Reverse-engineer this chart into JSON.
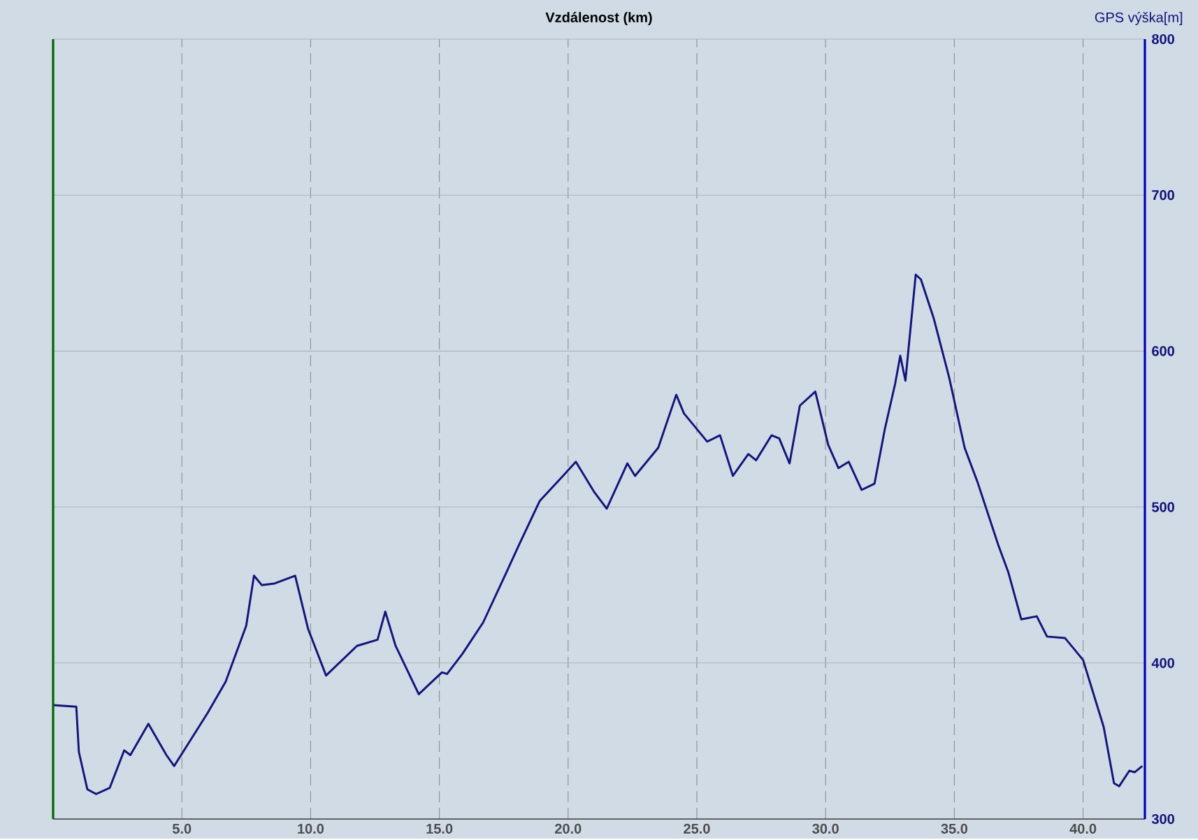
{
  "chart_data": {
    "type": "line",
    "xlabel": "Vzdálenost (km)",
    "ylabel": "GPS výška[m]",
    "x": [
      0,
      0.9,
      1.0,
      1.33,
      1.67,
      2.2,
      2.76,
      3.0,
      3.7,
      4.4,
      4.7,
      6.0,
      6.7,
      7.5,
      7.8,
      8.1,
      8.6,
      9.4,
      9.9,
      10.6,
      11.8,
      12.6,
      12.9,
      13.3,
      14.2,
      15.1,
      15.3,
      15.9,
      16.7,
      17.6,
      18.1,
      18.9,
      19.8,
      20.3,
      21.0,
      21.5,
      22.3,
      22.6,
      23.5,
      24.2,
      24.5,
      25.4,
      25.9,
      26.4,
      27.0,
      27.3,
      27.9,
      28.2,
      28.6,
      29.0,
      29.6,
      30.1,
      30.5,
      30.9,
      31.4,
      31.9,
      32.3,
      32.7,
      32.9,
      33.1,
      33.5,
      33.7,
      34.2,
      34.8,
      35.4,
      35.9,
      36.7,
      37.1,
      37.6,
      38.2,
      38.6,
      39.3,
      40.0,
      40.8,
      41.2,
      41.4,
      41.8,
      42.0,
      42.3
    ],
    "series": [
      {
        "color": "#14147a",
        "values": [
          373,
          372,
          343,
          319,
          316,
          320,
          344,
          341,
          361,
          341,
          334,
          368,
          388,
          424,
          456,
          450,
          451,
          456,
          422,
          392,
          411,
          415,
          433,
          411,
          380,
          394,
          393,
          406,
          426,
          458,
          476,
          504,
          520,
          529,
          510,
          499,
          528,
          520,
          538,
          572,
          560,
          542,
          546,
          520,
          534,
          530,
          546,
          544,
          528,
          565,
          574,
          540,
          525,
          529,
          511,
          515,
          550,
          579,
          597,
          581,
          649,
          646,
          621,
          583,
          538,
          516,
          476,
          458,
          428,
          430,
          417,
          416,
          402,
          359,
          323,
          321,
          331,
          330,
          334
        ]
      }
    ],
    "xlim": [
      0,
      42.4
    ],
    "xticks": [
      {
        "value": 5,
        "label": "5.0"
      },
      {
        "value": 10,
        "label": "10.0"
      },
      {
        "value": 15,
        "label": "15.0"
      },
      {
        "value": 20,
        "label": "20.0"
      },
      {
        "value": 25,
        "label": "25.0"
      },
      {
        "value": 30,
        "label": "30.0"
      },
      {
        "value": 35,
        "label": "35.0"
      },
      {
        "value": 40,
        "label": "40.0"
      }
    ],
    "ylim": [
      300,
      800
    ],
    "yticks": [
      300,
      400,
      500,
      600,
      700,
      800
    ],
    "grid": true,
    "marker": "none",
    "line_style": "solid"
  }
}
